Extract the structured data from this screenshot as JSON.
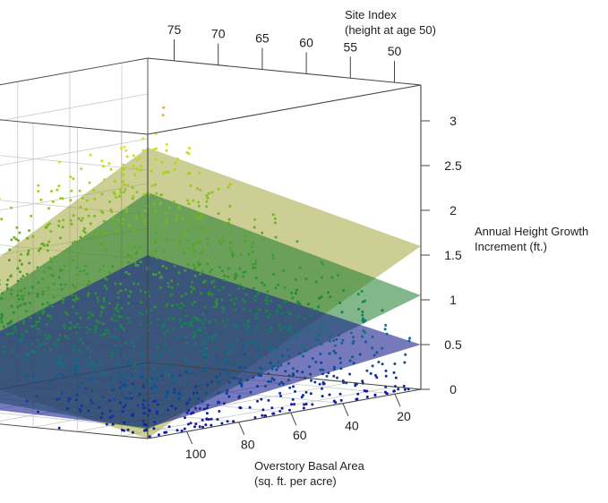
{
  "chart_data": {
    "type": "scatter",
    "projection": "3d",
    "axes": {
      "basal_area": {
        "label_lines": [
          "Overstory Basal Area",
          "(sq. ft. per acre)"
        ],
        "ticks": [
          20,
          40,
          60,
          80,
          100
        ],
        "range": [
          10,
          115
        ]
      },
      "site_index": {
        "label_lines": [
          "Site Index",
          "(height at age 50)"
        ],
        "ticks": [
          75,
          70,
          65,
          60,
          55,
          50
        ],
        "range": [
          47,
          78
        ]
      },
      "height_growth": {
        "label_lines": [
          "Annual Height Growth",
          "Increment  (ft.)"
        ],
        "ticks": [
          0,
          0.5,
          1,
          1.5,
          2,
          2.5,
          3
        ],
        "range": [
          0,
          3.4
        ]
      }
    },
    "grid": true,
    "color_scale": {
      "variable": "height_growth",
      "stops": [
        {
          "value": 0.0,
          "color": "#1018a8"
        },
        {
          "value": 0.6,
          "color": "#0a6f8a"
        },
        {
          "value": 1.0,
          "color": "#1d8a3c"
        },
        {
          "value": 1.6,
          "color": "#5aa825"
        },
        {
          "value": 2.2,
          "color": "#a7d11b"
        },
        {
          "value": 2.6,
          "color": "#e3e51a"
        },
        {
          "value": 3.0,
          "color": "#f08a18"
        },
        {
          "value": 3.4,
          "color": "#d82810"
        }
      ]
    },
    "surfaces": [
      {
        "fill": "#9a9d28",
        "opacity": 0.5,
        "corners": [
          {
            "basal_area": 115,
            "site_index": 78,
            "height_growth": 0.7
          },
          {
            "basal_area": 10,
            "site_index": 78,
            "height_growth": 2.4
          },
          {
            "basal_area": 10,
            "site_index": 47,
            "height_growth": 1.6
          },
          {
            "basal_area": 115,
            "site_index": 47,
            "height_growth": 0.0
          }
        ]
      },
      {
        "fill": "#1c7a2c",
        "opacity": 0.55,
        "corners": [
          {
            "basal_area": 115,
            "site_index": 78,
            "height_growth": 0.35
          },
          {
            "basal_area": 10,
            "site_index": 78,
            "height_growth": 1.9
          },
          {
            "basal_area": 10,
            "site_index": 47,
            "height_growth": 1.05
          },
          {
            "basal_area": 115,
            "site_index": 47,
            "height_growth": 0.1
          }
        ]
      },
      {
        "fill": "#1a2290",
        "opacity": 0.6,
        "corners": [
          {
            "basal_area": 115,
            "site_index": 78,
            "height_growth": 0.18
          },
          {
            "basal_area": 10,
            "site_index": 78,
            "height_growth": 1.2
          },
          {
            "basal_area": 10,
            "site_index": 47,
            "height_growth": 0.5
          },
          {
            "basal_area": 115,
            "site_index": 47,
            "height_growth": 0.12
          }
        ]
      }
    ],
    "points": {
      "count": 1600,
      "basal_area_range": [
        12,
        112
      ],
      "site_index_range": [
        48,
        77
      ],
      "height_growth_range": [
        0,
        3.4
      ]
    }
  }
}
